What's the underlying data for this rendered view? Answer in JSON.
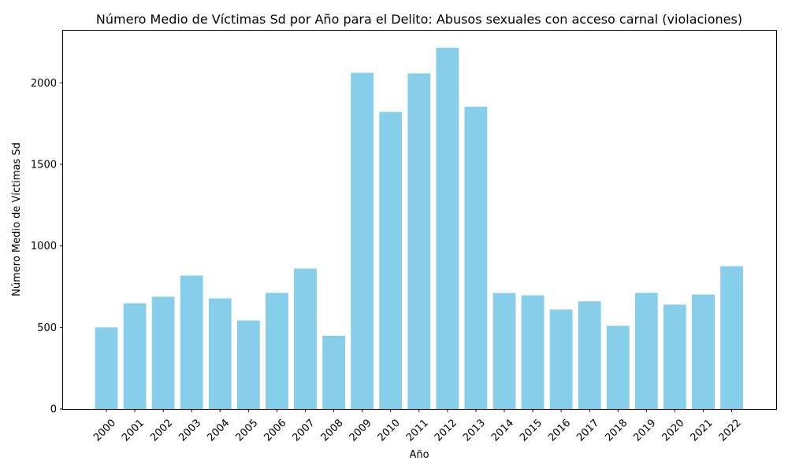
{
  "chart_data": {
    "type": "bar",
    "title": "Número Medio de Víctimas Sd por Año para el Delito: Abusos sexuales con acceso carnal (violaciones)",
    "xlabel": "Año",
    "ylabel": "Número Medio de Víctimas Sd",
    "categories": [
      "2000",
      "2001",
      "2002",
      "2003",
      "2004",
      "2005",
      "2006",
      "2007",
      "2008",
      "2009",
      "2010",
      "2011",
      "2012",
      "2013",
      "2014",
      "2015",
      "2016",
      "2017",
      "2018",
      "2019",
      "2020",
      "2021",
      "2022"
    ],
    "values": [
      500,
      648,
      688,
      818,
      678,
      543,
      712,
      861,
      449,
      2062,
      1822,
      2058,
      2215,
      1854,
      711,
      697,
      610,
      660,
      510,
      712,
      640,
      702,
      876
    ],
    "ylim": [
      0,
      2325
    ],
    "yticks": [
      0,
      500,
      1000,
      1500,
      2000
    ],
    "bar_color": "#87ceeb",
    "grid": false,
    "legend": "none"
  }
}
